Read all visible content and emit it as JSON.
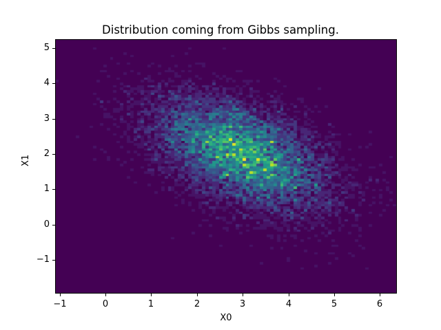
{
  "chart_data": {
    "type": "heatmap",
    "subtype": "hist2d",
    "title": "Distribution coming from Gibbs sampling.",
    "xlabel": "X0",
    "ylabel": "X1",
    "xlim": [
      -1.1,
      6.37
    ],
    "ylim": [
      -1.95,
      5.25
    ],
    "xticks": [
      -1,
      0,
      1,
      2,
      3,
      4,
      5,
      6
    ],
    "xtick_labels": [
      "−1",
      "0",
      "1",
      "2",
      "3",
      "4",
      "5",
      "6"
    ],
    "yticks": [
      -1,
      0,
      1,
      2,
      3,
      4,
      5
    ],
    "ytick_labels": [
      "−1",
      "0",
      "1",
      "2",
      "3",
      "4",
      "5"
    ],
    "bins": [
      100,
      100
    ],
    "colormap": "viridis",
    "distribution": {
      "kind": "bivariate_normal",
      "mean": [
        3.0,
        2.0
      ],
      "std": [
        1.0,
        0.85
      ],
      "correlation": -0.5,
      "n_samples": 10000
    },
    "grid": false,
    "legend": null,
    "colormap_stops": [
      "#440154",
      "#482878",
      "#3e4989",
      "#31688e",
      "#26828e",
      "#1f9e89",
      "#35b779",
      "#6ece58",
      "#b5de2b",
      "#fde725"
    ]
  }
}
